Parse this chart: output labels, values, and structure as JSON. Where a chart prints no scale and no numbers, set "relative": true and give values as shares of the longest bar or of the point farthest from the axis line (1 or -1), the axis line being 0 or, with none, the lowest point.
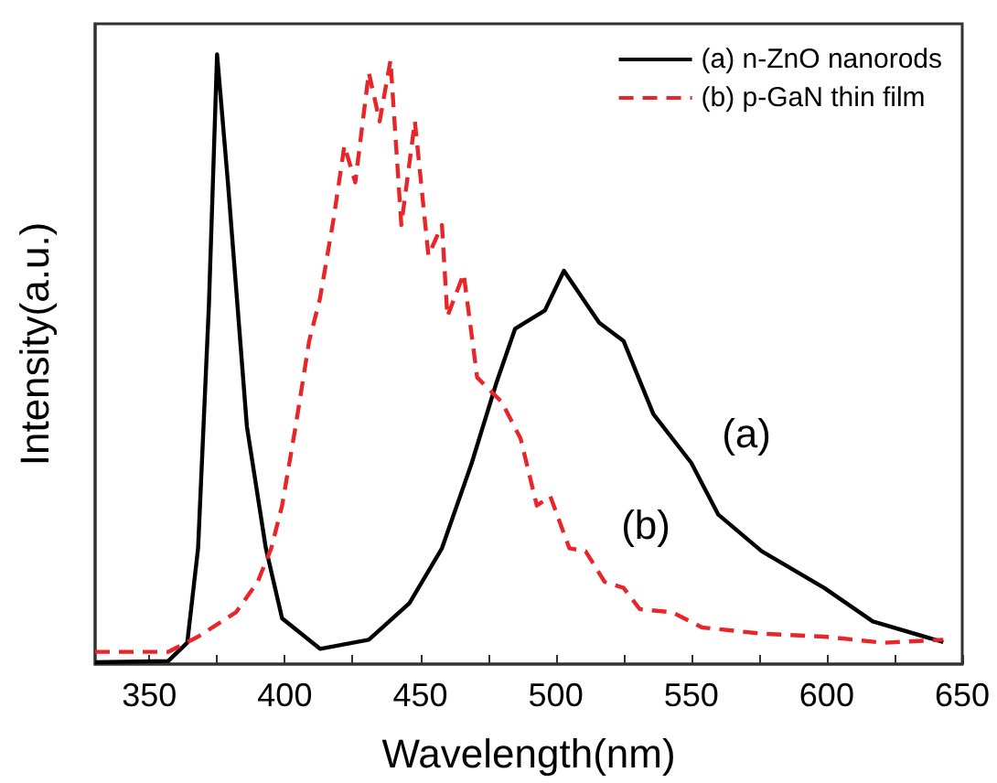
{
  "chart_data": {
    "type": "line",
    "relative": true,
    "xlabel": "Wavelength(nm)",
    "ylabel": "Intensity(a.u.)",
    "xlim": [
      330,
      650
    ],
    "xticks": [
      350,
      {
        "value": 375,
        "label": null
      },
      400,
      {
        "value": 425,
        "label": null
      },
      450,
      {
        "value": 475,
        "label": null
      },
      500,
      {
        "value": 525,
        "label": null
      },
      550,
      {
        "value": 575,
        "label": null
      },
      600,
      {
        "value": 625,
        "label": null
      },
      650
    ],
    "grid": false,
    "legend": "top right",
    "marker": "none",
    "annotations": [
      "(a)",
      "(b)"
    ],
    "series": [
      {
        "name": "(a) n-ZnO nanorods",
        "color": "#000000",
        "line_style": "solid",
        "x": [
          330,
          357,
          364,
          368,
          372,
          375,
          379,
          386,
          393,
          399,
          413,
          431,
          446,
          458,
          469,
          478,
          485,
          496,
          503,
          516,
          525,
          536,
          550,
          560,
          576,
          599,
          617,
          643
        ],
        "values": [
          0.003,
          0.005,
          0.035,
          0.19,
          0.59,
          1,
          0.79,
          0.39,
          0.19,
          0.075,
          0.025,
          0.04,
          0.1,
          0.19,
          0.33,
          0.46,
          0.55,
          0.58,
          0.645,
          0.56,
          0.53,
          0.41,
          0.33,
          0.245,
          0.185,
          0.125,
          0.07,
          0.036
        ]
      },
      {
        "name": "(b) p-GaN thin film",
        "color": "#e8262a",
        "line_style": "dashed",
        "x": [
          330,
          357,
          368,
          382,
          390,
          395,
          399,
          404,
          409,
          413,
          418,
          422,
          426,
          431,
          435,
          439,
          443,
          448,
          453,
          458,
          460,
          466,
          471,
          480,
          487,
          493,
          498,
          505,
          511,
          518,
          525,
          531,
          543,
          554,
          576,
          599,
          621,
          643
        ],
        "values": [
          0.02,
          0.02,
          0.045,
          0.085,
          0.135,
          0.19,
          0.26,
          0.39,
          0.53,
          0.6,
          0.73,
          0.85,
          0.79,
          0.97,
          0.89,
          0.99,
          0.72,
          0.89,
          0.67,
          0.72,
          0.57,
          0.64,
          0.47,
          0.43,
          0.37,
          0.26,
          0.275,
          0.19,
          0.185,
          0.135,
          0.125,
          0.09,
          0.085,
          0.06,
          0.05,
          0.045,
          0.035,
          0.04
        ]
      }
    ]
  }
}
